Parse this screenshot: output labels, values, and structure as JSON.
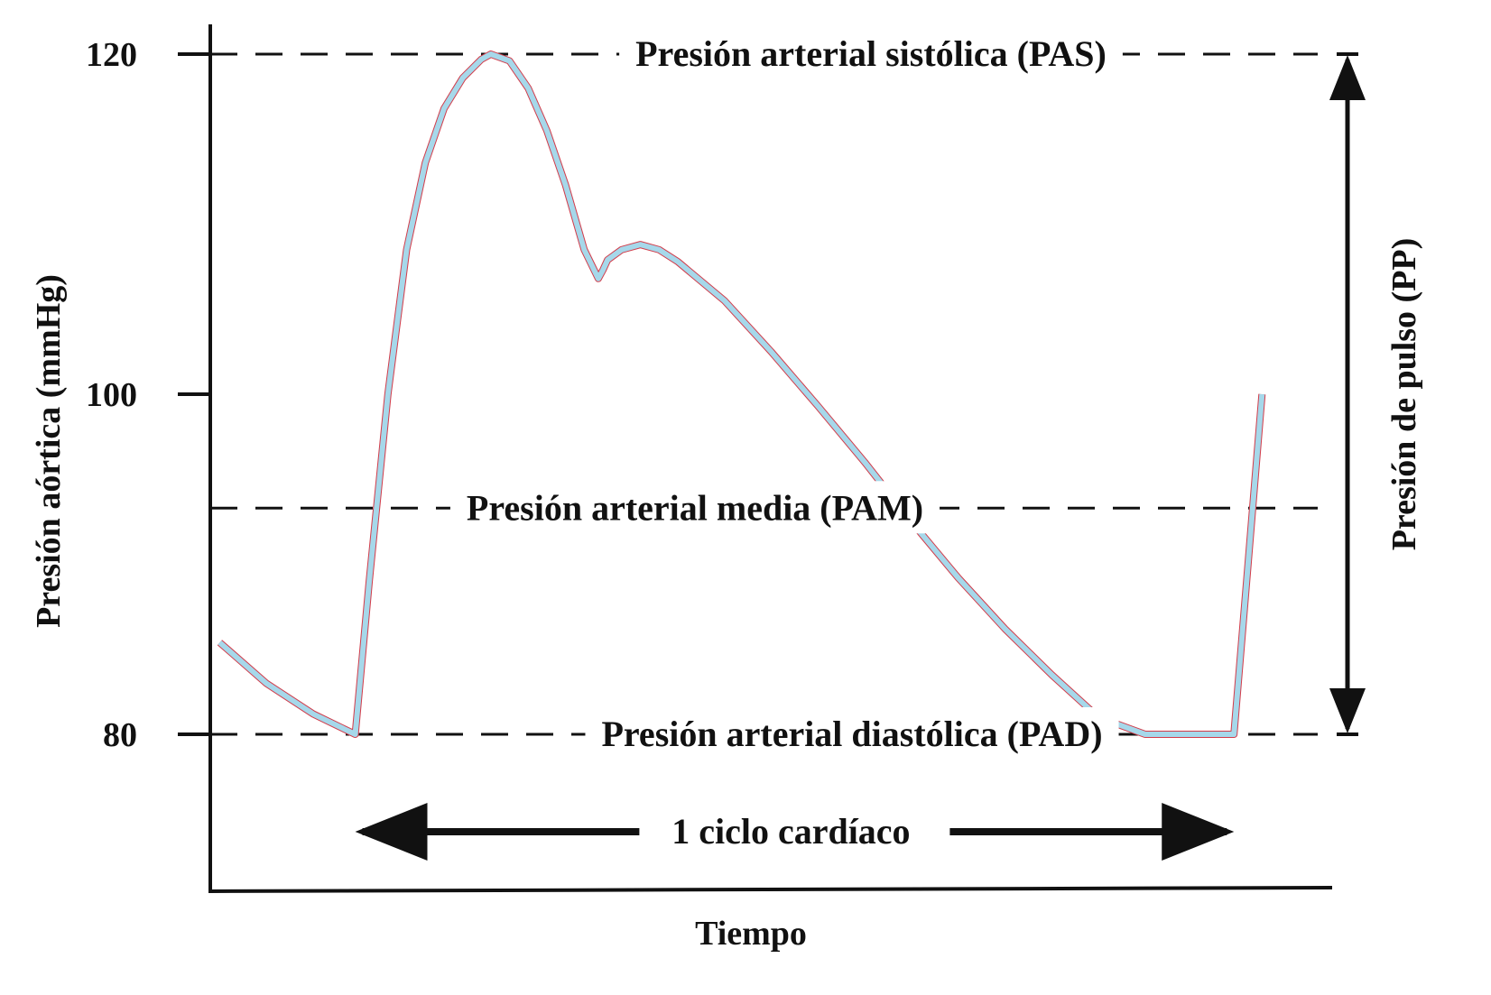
{
  "chart_data": {
    "type": "line",
    "xlabel": "Tiempo",
    "ylabel": "Presión aórtica (mmHg)",
    "yticks": [
      120,
      100,
      80
    ],
    "ylim": [
      71,
      120
    ],
    "xlim": [
      0,
      1.2
    ],
    "grid": false,
    "series": [
      {
        "color": "#a6d8ea",
        "outline_color": "#d33c4a",
        "x": [
          0.01,
          0.06,
          0.11,
          0.155,
          0.17,
          0.19,
          0.21,
          0.23,
          0.25,
          0.27,
          0.29,
          0.3,
          0.32,
          0.34,
          0.36,
          0.38,
          0.4,
          0.415,
          0.42,
          0.425,
          0.44,
          0.46,
          0.48,
          0.5,
          0.55,
          0.6,
          0.65,
          0.7,
          0.75,
          0.8,
          0.85,
          0.9,
          0.95,
          1.0,
          1.05,
          1.095,
          1.11,
          1.125
        ],
        "y": [
          85.4,
          83.0,
          81.2,
          80.0,
          89.0,
          100.0,
          108.5,
          113.6,
          116.8,
          118.6,
          119.7,
          120.0,
          119.6,
          118.0,
          115.5,
          112.3,
          108.5,
          106.8,
          107.3,
          107.9,
          108.5,
          108.8,
          108.5,
          107.8,
          105.5,
          102.5,
          99.3,
          96.0,
          92.5,
          89.2,
          86.2,
          83.5,
          81.0,
          80.0,
          80.0,
          80.0,
          90.0,
          100.0
        ]
      }
    ],
    "reference_lines": [
      {
        "key": "pas",
        "value": 120,
        "label": "Presión arterial sistólica (PAS)"
      },
      {
        "key": "pam",
        "value": 93.3,
        "label": "Presión arterial media (PAM)"
      },
      {
        "key": "pad",
        "value": 80,
        "label": "Presión arterial diastólica (PAD)"
      }
    ],
    "annotations": {
      "cycle": {
        "label": "1 ciclo cardíaco",
        "x_start": 0.155,
        "x_end": 1.095
      },
      "pulse_pressure": {
        "label": "Presión de pulso (PP)",
        "y_low": 80,
        "y_high": 120
      }
    }
  }
}
